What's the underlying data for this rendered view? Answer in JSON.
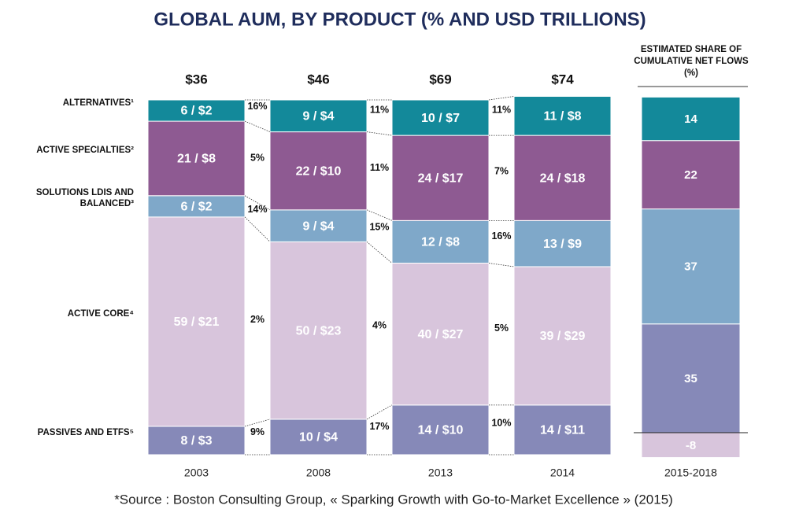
{
  "chart_data": {
    "type": "stacked_bar",
    "title": "GLOBAL AUM, BY PRODUCT (% AND USD TRILLIONS)",
    "categories": [
      "2003",
      "2008",
      "2013",
      "2014"
    ],
    "ylim": [
      0,
      100
    ],
    "totals": {
      "values": [
        36,
        46,
        69,
        74
      ],
      "value_labels": [
        "$36",
        "$46",
        "$69",
        "$74"
      ]
    },
    "series": [
      {
        "name": "PASSIVES AND ETFS⁵",
        "color": "#8689b8",
        "values": [
          8,
          10,
          14,
          14
        ],
        "value_labels": [
          "8 / $3",
          "10 / $4",
          "14 / $10",
          "14 / $11"
        ],
        "growth": {
          "values": [
            9,
            17,
            10
          ],
          "value_labels": [
            "9%",
            "17%",
            "10%"
          ]
        }
      },
      {
        "name": "ACTIVE CORE⁴",
        "color": "#d8c5dc",
        "values": [
          59,
          50,
          40,
          39
        ],
        "value_labels": [
          "59 / $21",
          "50 / $23",
          "40 / $27",
          "39 / $29"
        ],
        "growth": {
          "values": [
            2,
            4,
            5
          ],
          "value_labels": [
            "2%",
            "4%",
            "5%"
          ]
        }
      },
      {
        "name": "SOLUTIONS LDIS AND BALANCED³",
        "color": "#7fa8c9",
        "values": [
          6,
          9,
          12,
          13
        ],
        "value_labels": [
          "6 / $2",
          "9 / $4",
          "12 / $8",
          "13 / $9"
        ],
        "growth": {
          "values": [
            14,
            15,
            16
          ],
          "value_labels": [
            "14%",
            "15%",
            "16%"
          ]
        }
      },
      {
        "name": "ACTIVE SPECIALTIES²",
        "color": "#8e5a92",
        "values": [
          21,
          22,
          24,
          24
        ],
        "value_labels": [
          "21 / $8",
          "22 / $10",
          "24 / $17",
          "24 / $18"
        ],
        "growth": {
          "values": [
            5,
            11,
            7
          ],
          "value_labels": [
            "5%",
            "11%",
            "7%"
          ]
        }
      },
      {
        "name": "ALTERNATIVES¹",
        "color": "#13899a",
        "values": [
          6,
          9,
          10,
          11
        ],
        "value_labels": [
          "6 / $2",
          "9 / $4",
          "10 / $7",
          "11 / $8"
        ],
        "growth": {
          "values": [
            16,
            11,
            11
          ],
          "value_labels": [
            "16%",
            "11%",
            "11%"
          ]
        }
      }
    ],
    "flows": {
      "title": "ESTIMATED SHARE OF CUMULATIVE NET FLOWS (%)",
      "category": "2015-2018",
      "total": 100,
      "values": [
        35,
        -8,
        37,
        22,
        14
      ]
    },
    "source": "*Source : Boston Consulting Group, « Sparking Growth with Go-to-Market Excellence » (2015)"
  }
}
